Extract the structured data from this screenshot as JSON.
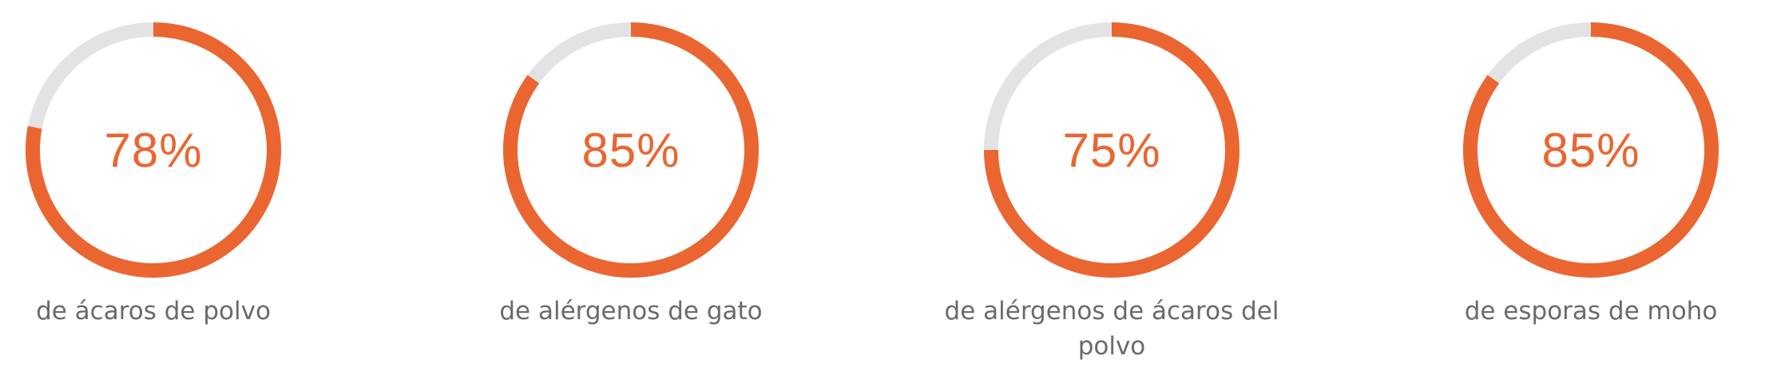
{
  "colors": {
    "accent": "#ea6530",
    "track": "#e3e3e5",
    "label": "#6a6a6a"
  },
  "chart_data": [
    {
      "type": "donut",
      "value": 78,
      "max": 100,
      "value_label": "78%",
      "label": "de ácaros de polvo"
    },
    {
      "type": "donut",
      "value": 85,
      "max": 100,
      "value_label": "85%",
      "label": "de alérgenos de gato"
    },
    {
      "type": "donut",
      "value": 75,
      "max": 100,
      "value_label": "75%",
      "label": "de alérgenos de ácaros del polvo"
    },
    {
      "type": "donut",
      "value": 85,
      "max": 100,
      "value_label": "85%",
      "label": "de esporas de moho"
    }
  ]
}
